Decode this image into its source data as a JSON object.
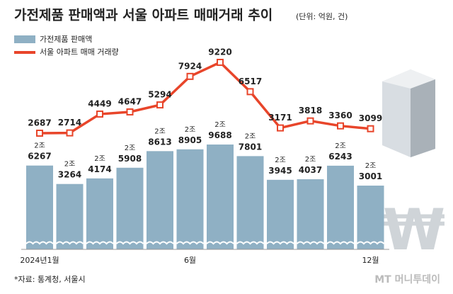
{
  "chart_data": {
    "type": "bar-line",
    "title": "가전제품 판매액과 서울 아파트 매매거래 추이",
    "subtitle": "(단위: 억원, 건)",
    "categories": [
      "2024년1월",
      null,
      null,
      null,
      null,
      "6월",
      null,
      null,
      null,
      null,
      null,
      "12월"
    ],
    "series": [
      {
        "name": "가전제품 판매액",
        "color": "#8fb0c4",
        "type": "bar",
        "values": [
          26267,
          23264,
          24174,
          25908,
          28613,
          28905,
          29688,
          27801,
          23945,
          24037,
          26243,
          23001
        ],
        "value_labels": [
          "2조 6267",
          "2조 3264",
          "2조 4174",
          "2조 5908",
          "2조 8613",
          "2조 8905",
          "2조 9688",
          "2조 7801",
          "2조 3945",
          "2조 4037",
          "2조 6243",
          "2조 3001"
        ]
      },
      {
        "name": "서울 아파트 매매 거래량",
        "color": "#e8452a",
        "type": "line",
        "values": [
          2687,
          2714,
          4449,
          4647,
          5294,
          7924,
          9220,
          6517,
          3171,
          3818,
          3360,
          3099
        ]
      }
    ],
    "source": "*자료: 통계청, 서울시",
    "logo": "MT 머니투데이"
  }
}
